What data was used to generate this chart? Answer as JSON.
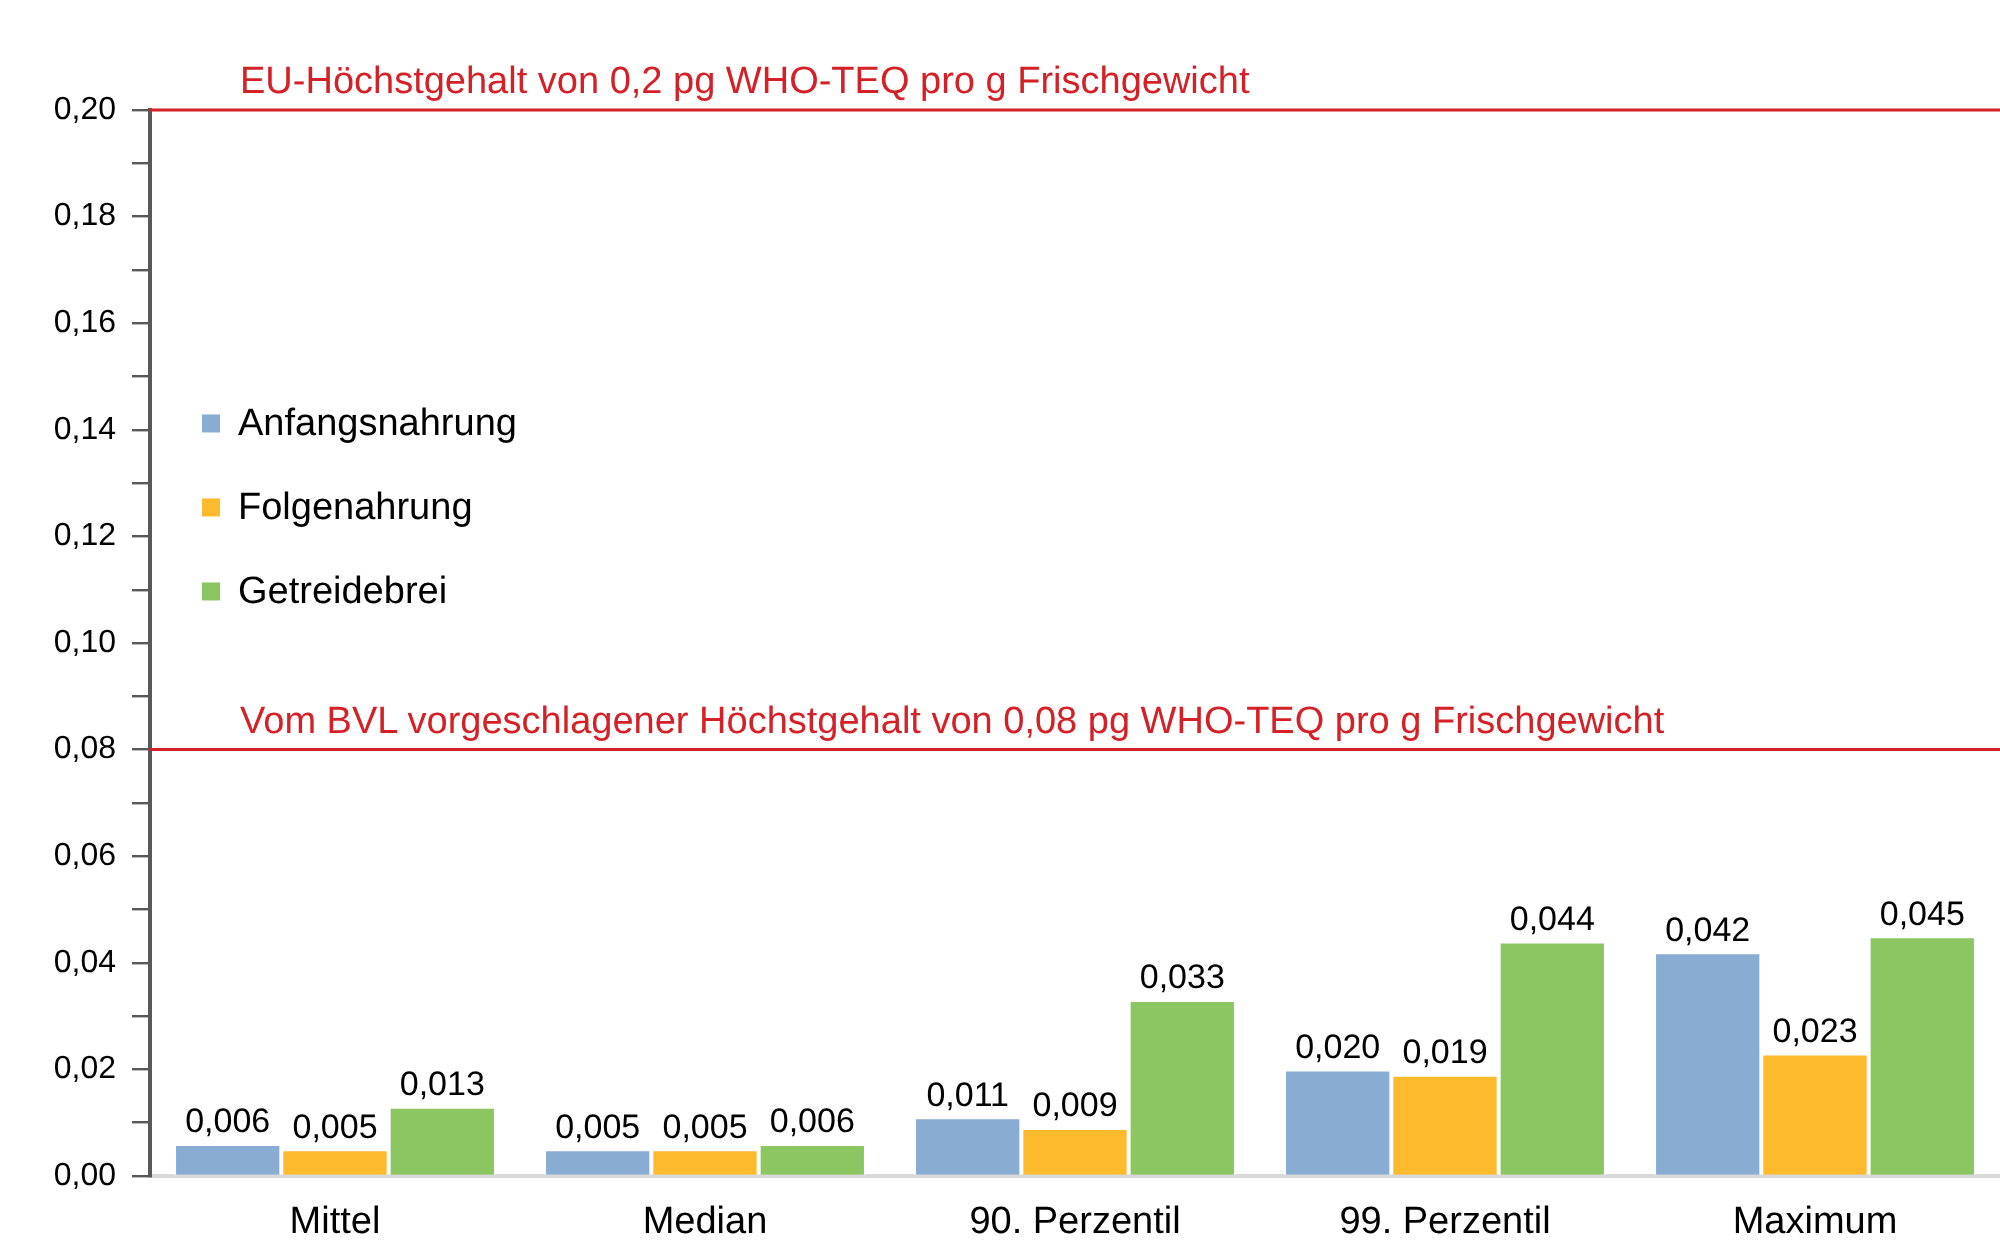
{
  "chart_data": {
    "type": "bar",
    "categories": [
      "Mittel",
      "Median",
      "90. Perzentil",
      "99. Perzentil",
      "Maximum"
    ],
    "series": [
      {
        "name": "Anfangsnahrung",
        "color": "#88acd2",
        "values": [
          0.006,
          0.005,
          0.011,
          0.02,
          0.042
        ],
        "value_labels": [
          "0,006",
          "0,005",
          "0,011",
          "0,020",
          "0,042"
        ]
      },
      {
        "name": "Folgenahrung",
        "color": "#fdba2c",
        "values": [
          0.005,
          0.005,
          0.009,
          0.019,
          0.023
        ],
        "value_labels": [
          "0,005",
          "0,005",
          "0,009",
          "0,019",
          "0,023"
        ]
      },
      {
        "name": "Getreidebrei",
        "color": "#8cc663",
        "values": [
          0.013,
          0.006,
          0.033,
          0.044,
          0.045
        ],
        "value_labels": [
          "0,013",
          "0,006",
          "0,033",
          "0,044",
          "0,045"
        ]
      }
    ],
    "ylim": [
      0,
      0.2
    ],
    "yticks": [
      {
        "value": 0,
        "label": "0,00"
      },
      {
        "value": 0.01,
        "label": null
      },
      {
        "value": 0.02,
        "label": "0,02"
      },
      {
        "value": 0.03,
        "label": null
      },
      {
        "value": 0.04,
        "label": "0,04"
      },
      {
        "value": 0.05,
        "label": null
      },
      {
        "value": 0.06,
        "label": "0,06"
      },
      {
        "value": 0.07,
        "label": null
      },
      {
        "value": 0.08,
        "label": "0,08"
      },
      {
        "value": 0.09,
        "label": null
      },
      {
        "value": 0.1,
        "label": "0,10"
      },
      {
        "value": 0.11,
        "label": null
      },
      {
        "value": 0.12,
        "label": "0,12"
      },
      {
        "value": 0.13,
        "label": null
      },
      {
        "value": 0.14,
        "label": "0,14"
      },
      {
        "value": 0.15,
        "label": null
      },
      {
        "value": 0.16,
        "label": "0,16"
      },
      {
        "value": 0.17,
        "label": null
      },
      {
        "value": 0.18,
        "label": "0,18"
      },
      {
        "value": 0.19,
        "label": null
      },
      {
        "value": 0.2,
        "label": "0,20"
      }
    ],
    "ref_lines": [
      {
        "axis": "y",
        "value": 0.2,
        "label": "EU-Höchstgehalt von 0,2 pg WHO-TEQ pro g Frischgewicht",
        "color": "#d42027"
      },
      {
        "axis": "y",
        "value": 0.08,
        "label": "Vom BVL vorgeschlagener Höchstgehalt von 0,08 pg WHO-TEQ pro g Frischgewicht",
        "color": "#d42027"
      }
    ],
    "legend": "left"
  }
}
